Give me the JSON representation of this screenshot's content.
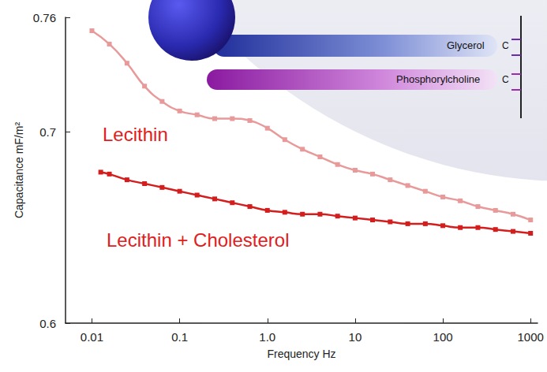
{
  "chart_data": {
    "type": "line",
    "xlabel": "Frequency Hz",
    "ylabel": "Capacitance mF/m²",
    "annotations": [
      "Glycerol",
      "Phosphorylcholine",
      "C",
      "C"
    ],
    "log": "x",
    "grid": false,
    "marker": "square",
    "xlim": [
      0.005,
      1200
    ],
    "xticks": [
      0.01,
      0.1,
      {
        "value": 1,
        "label": "1.0"
      },
      10,
      100,
      1000
    ],
    "ylim": [
      0.6,
      0.76
    ],
    "yticks": [
      0.6,
      0.7,
      0.76
    ],
    "series": [
      {
        "name": "Lecithin",
        "color": "#e89a9a",
        "x": [
          0.01,
          0.0158,
          0.0251,
          0.0398,
          0.0631,
          0.1,
          0.158,
          0.251,
          0.398,
          0.631,
          1,
          1.58,
          2.51,
          3.98,
          6.31,
          10,
          15.8,
          25.1,
          39.8,
          63.1,
          100,
          158,
          251,
          398,
          631,
          1000
        ],
        "values": [
          0.753,
          0.746,
          0.736,
          0.724,
          0.716,
          0.711,
          0.709,
          0.707,
          0.707,
          0.706,
          0.702,
          0.696,
          0.691,
          0.687,
          0.683,
          0.68,
          0.678,
          0.675,
          0.672,
          0.669,
          0.666,
          0.664,
          0.661,
          0.659,
          0.657,
          0.654
        ]
      },
      {
        "name": "Lecithin + Cholesterol",
        "color": "#d41e1e",
        "x": [
          0.0126,
          0.0158,
          0.0251,
          0.0398,
          0.0631,
          0.1,
          0.158,
          0.251,
          0.398,
          0.631,
          1,
          1.58,
          2.51,
          3.98,
          6.31,
          10,
          15.8,
          25.1,
          39.8,
          63.1,
          100,
          158,
          251,
          398,
          631,
          1000
        ],
        "values": [
          0.679,
          0.678,
          0.675,
          0.673,
          0.671,
          0.669,
          0.667,
          0.665,
          0.663,
          0.661,
          0.659,
          0.658,
          0.657,
          0.657,
          0.656,
          0.655,
          0.654,
          0.653,
          0.652,
          0.652,
          0.651,
          0.65,
          0.65,
          0.649,
          0.648,
          0.647
        ]
      }
    ]
  }
}
